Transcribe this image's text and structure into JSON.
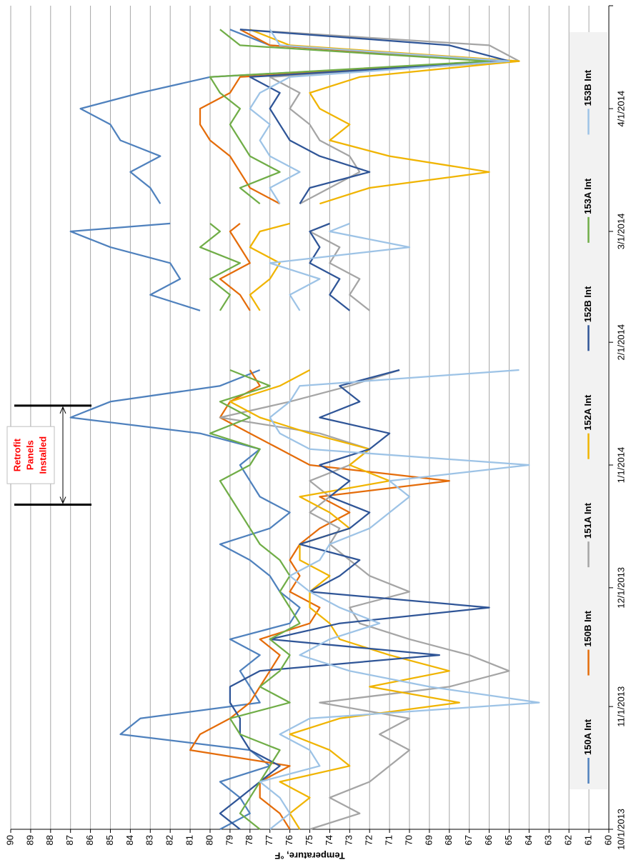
{
  "chart_data": {
    "type": "line",
    "y_label": "Temperature, °F",
    "x": [
      "10/1/2013",
      "10/5/2013",
      "10/9/2013",
      "10/13/2013",
      "10/17/2013",
      "10/21/2013",
      "10/25/2013",
      "10/29/2013",
      "11/2/2013",
      "11/6/2013",
      "11/10/2013",
      "11/14/2013",
      "11/18/2013",
      "11/22/2013",
      "11/26/2013",
      "11/30/2013",
      "12/4/2013",
      "12/8/2013",
      "12/12/2013",
      "12/16/2013",
      "12/20/2013",
      "12/24/2013",
      "12/28/2013",
      "1/1/2014",
      "1/5/2014",
      "1/9/2014",
      "1/13/2014",
      "1/17/2014",
      "1/21/2014",
      "1/25/2014",
      "2/1/2014",
      "2/9/2014",
      "2/13/2014",
      "2/17/2014",
      "2/21/2014",
      "2/25/2014",
      "3/1/2014",
      "3/3/2014",
      "3/5/2014",
      "3/8/2014",
      "3/12/2014",
      "3/16/2014",
      "3/20/2014",
      "3/24/2014",
      "3/28/2014",
      "4/1/2014",
      "4/5/2014",
      "4/9/2014",
      "4/13/2014",
      "4/17/2014",
      "4/21/2014"
    ],
    "series": [
      {
        "name": "150A Int",
        "color": "#4f81bd",
        "values": [
          79.5,
          78,
          78.5,
          79.5,
          77,
          78,
          84.5,
          83.5,
          77.5,
          78,
          78.5,
          77.5,
          79,
          76,
          75.5,
          76.5,
          77,
          78,
          79.5,
          77,
          76,
          77.5,
          78,
          78.5,
          77.5,
          80.5,
          87,
          85,
          79.5,
          77.5,
          null,
          80.5,
          83,
          81.5,
          82,
          85,
          87,
          82,
          null,
          82.5,
          83,
          84,
          82.5,
          84.5,
          85,
          86.5,
          83.5,
          80,
          65.5,
          77,
          79
        ]
      },
      {
        "name": "150B Int",
        "color": "#e46c0a",
        "values": [
          76,
          76.5,
          77.5,
          77.5,
          76,
          81,
          80.5,
          79,
          78,
          77.5,
          77,
          76.5,
          77.5,
          75,
          74.5,
          76,
          75.5,
          76,
          75.5,
          74.5,
          73,
          74.5,
          68,
          75,
          76.5,
          78,
          79.5,
          79,
          77.5,
          78,
          null,
          78,
          78.5,
          79.5,
          78,
          78.5,
          79,
          78.5,
          null,
          76.5,
          78,
          78.5,
          79,
          80,
          80.5,
          80.5,
          79,
          78.5,
          65,
          77,
          78.5
        ]
      },
      {
        "name": "151A Int",
        "color": "#a5a5a5",
        "values": [
          75,
          72.5,
          74,
          72,
          71,
          70,
          71.5,
          70,
          74.5,
          68,
          65,
          67,
          70,
          72.5,
          73,
          70,
          72,
          73,
          74,
          73.5,
          75,
          74,
          75,
          73,
          72,
          74.5,
          79.5,
          76,
          73,
          70.5,
          null,
          72,
          73,
          72.5,
          74,
          73.5,
          75,
          74,
          null,
          75.5,
          74,
          72.5,
          73,
          74.5,
          75,
          76,
          75.5,
          77,
          64.5,
          66,
          78.5
        ]
      },
      {
        "name": "152A Int",
        "color": "#f0b400",
        "values": [
          75.5,
          76,
          75,
          76.5,
          73,
          74,
          76,
          73.5,
          67.5,
          72,
          68,
          71,
          73.5,
          74,
          75,
          75,
          74,
          75.5,
          75.5,
          73,
          74,
          75.5,
          71,
          73,
          72,
          75,
          77.5,
          79,
          76.5,
          75,
          null,
          77.5,
          78,
          77,
          76.5,
          78,
          77.5,
          76,
          null,
          74.5,
          72,
          66,
          71,
          74,
          73,
          74.5,
          75,
          72.5,
          64.5,
          76,
          78
        ]
      },
      {
        "name": "152B Int",
        "color": "#2f5597",
        "values": [
          78.5,
          79.5,
          78.5,
          77.5,
          76.5,
          78,
          78.5,
          78.5,
          79,
          79,
          77.5,
          68.5,
          77,
          73.5,
          66,
          75,
          73.5,
          72.5,
          75.5,
          73,
          72,
          74,
          73,
          74.5,
          72,
          71,
          74.5,
          72.5,
          73.5,
          70.5,
          null,
          73,
          74,
          73.5,
          75,
          74.5,
          75,
          74,
          null,
          75.5,
          75,
          72,
          74.5,
          76,
          76.5,
          77,
          76.5,
          78,
          65,
          68,
          78.5
        ]
      },
      {
        "name": "153A Int",
        "color": "#70ad47",
        "values": [
          77.5,
          78.5,
          78,
          77.5,
          77,
          76.5,
          78.5,
          79,
          76,
          77.5,
          76.5,
          76,
          77,
          75.5,
          76,
          76.5,
          76,
          76.5,
          77.5,
          78,
          78.5,
          79,
          79.5,
          78,
          77.5,
          80,
          78,
          79.5,
          77,
          79,
          null,
          79.5,
          79,
          80,
          78.5,
          80.5,
          79.5,
          80,
          null,
          77.5,
          78.5,
          76.5,
          78,
          78.5,
          79,
          78.5,
          79.5,
          80,
          66,
          78.5,
          79.5
        ]
      },
      {
        "name": "153B Int",
        "color": "#9dc3e6",
        "values": [
          77,
          76,
          76.5,
          77.5,
          74.5,
          75,
          76.5,
          75,
          63.5,
          69,
          73,
          75.5,
          74,
          71.5,
          73.5,
          75,
          76,
          74.5,
          74,
          72,
          71,
          70,
          71,
          64,
          75,
          76.5,
          77,
          76,
          75.5,
          64.5,
          null,
          75.5,
          76,
          74.5,
          77,
          70,
          74,
          73,
          null,
          76.5,
          77,
          75.5,
          77,
          77.5,
          77,
          78,
          77.5,
          76,
          65,
          76.5,
          77
        ]
      }
    ],
    "xlim": [
      "10/1/2013",
      "4/27/2014"
    ],
    "xticks": [
      "10/1/2013",
      "11/1/2013",
      "12/1/2013",
      "1/1/2014",
      "2/1/2014",
      "3/1/2014",
      "4/1/2014"
    ],
    "ylim": [
      60,
      90
    ],
    "yticks": [
      60,
      61,
      62,
      63,
      64,
      65,
      66,
      67,
      68,
      69,
      70,
      71,
      72,
      73,
      74,
      75,
      76,
      77,
      78,
      79,
      80,
      81,
      82,
      83,
      84,
      85,
      86,
      87,
      88,
      89,
      90
    ],
    "grid": true,
    "legend": "bottom",
    "rotation": -90,
    "annotation": {
      "text": [
        "Retrofit",
        "Panels",
        "Installed"
      ],
      "x": [
        "12/22/2013",
        "1/16/2014"
      ],
      "color": "#ff0000"
    }
  }
}
